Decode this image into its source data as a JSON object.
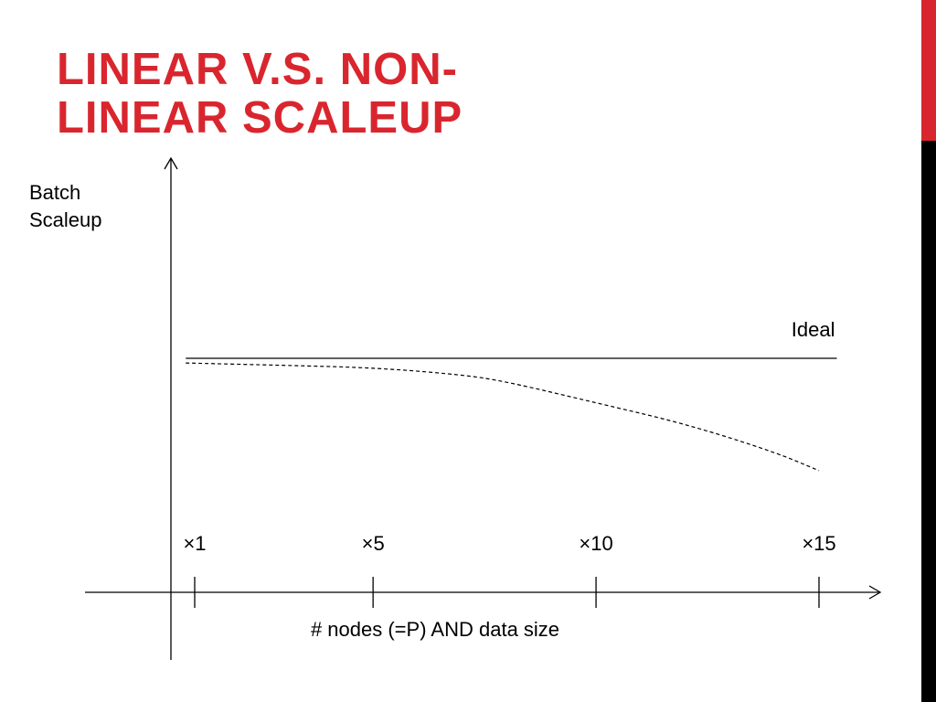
{
  "slide": {
    "title_lines": [
      "LINEAR V.S. NON-",
      "LINEAR SCALEUP"
    ],
    "accent_color": "#d9262e",
    "title_color": "#d9262e",
    "bar_dark_color": "#000000"
  },
  "chart_data": {
    "type": "line",
    "ylabel_lines": [
      "Batch",
      "Scaleup"
    ],
    "xlabel": "# nodes (=P) AND data size",
    "x_ticks": [
      1,
      5,
      10,
      15
    ],
    "x_tick_labels": [
      "×1",
      "×5",
      "×10",
      "×15"
    ],
    "xlim": [
      0.5,
      16.5
    ],
    "ylim": [
      0,
      1.3
    ],
    "grid": false,
    "series": [
      {
        "name": "Ideal",
        "style": "solid",
        "x": [
          0.8,
          15.4
        ],
        "y": [
          1.0,
          1.0
        ]
      },
      {
        "name": "",
        "style": "dashed",
        "x": [
          0.8,
          3,
          5,
          7,
          8,
          10,
          12,
          14,
          15
        ],
        "y": [
          0.98,
          0.97,
          0.96,
          0.93,
          0.9,
          0.81,
          0.72,
          0.6,
          0.52
        ]
      }
    ]
  }
}
